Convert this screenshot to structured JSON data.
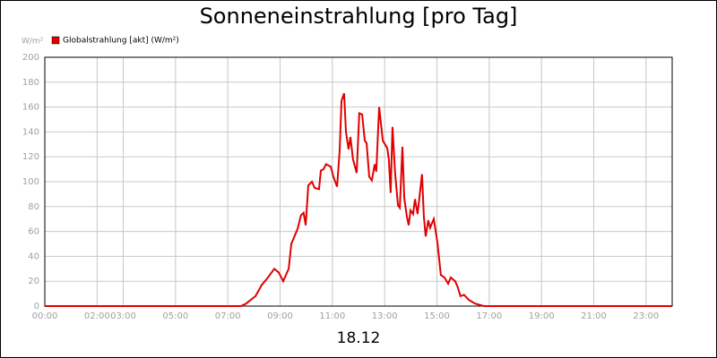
{
  "chart_data": {
    "type": "line",
    "title": "Sonneneinstrahlung [pro Tag]",
    "ylabel": "W/m²",
    "xlabel": "18.12",
    "x": [
      0,
      7.5,
      7.7,
      8.06,
      8.3,
      8.5,
      8.78,
      8.95,
      9.12,
      9.33,
      9.43,
      9.67,
      9.8,
      9.9,
      9.98,
      10.08,
      10.22,
      10.32,
      10.49,
      10.56,
      10.66,
      10.76,
      10.94,
      11.04,
      11.18,
      11.28,
      11.35,
      11.45,
      11.52,
      11.62,
      11.69,
      11.79,
      11.93,
      12.03,
      12.14,
      12.24,
      12.31,
      12.41,
      12.51,
      12.62,
      12.68,
      12.79,
      12.93,
      13.1,
      13.16,
      13.23,
      13.3,
      13.4,
      13.51,
      13.58,
      13.68,
      13.75,
      13.85,
      13.92,
      13.99,
      14.09,
      14.16,
      14.26,
      14.43,
      14.5,
      14.57,
      14.67,
      14.74,
      14.88,
      15.02,
      15.15,
      15.29,
      15.43,
      15.53,
      15.7,
      15.8,
      15.9,
      16.04,
      16.22,
      16.46,
      16.8,
      24
    ],
    "series": [
      {
        "name": "Globalstrahlung [akt] (W/m²)",
        "color": "#e00000",
        "values": [
          0,
          0,
          2,
          8,
          17,
          22,
          30,
          27,
          20,
          30,
          50,
          62,
          73,
          75,
          65,
          97,
          100,
          95,
          94,
          109,
          110,
          114,
          112,
          104,
          96,
          125,
          165,
          171,
          140,
          126,
          136,
          118,
          107,
          155,
          154,
          133,
          131,
          104,
          101,
          114,
          108,
          160,
          133,
          127,
          118,
          91,
          144,
          107,
          81,
          79,
          128,
          87,
          72,
          65,
          77,
          74,
          86,
          74,
          106,
          72,
          56,
          69,
          63,
          70,
          51,
          25,
          23,
          18,
          23,
          20,
          15,
          8,
          9,
          5,
          2,
          0,
          0
        ]
      }
    ],
    "xlim": [
      0,
      24
    ],
    "ylim": [
      0,
      200
    ],
    "xticks": [
      {
        "value": 0,
        "label": "00:00"
      },
      {
        "value": 2,
        "label": "02:00"
      },
      {
        "value": 3,
        "label": "03:00"
      },
      {
        "value": 5,
        "label": "05:00"
      },
      {
        "value": 7,
        "label": "07:00"
      },
      {
        "value": 9,
        "label": "09:00"
      },
      {
        "value": 11,
        "label": "11:00"
      },
      {
        "value": 13,
        "label": "13:00"
      },
      {
        "value": 15,
        "label": "15:00"
      },
      {
        "value": 17,
        "label": "17:00"
      },
      {
        "value": 19,
        "label": "19:00"
      },
      {
        "value": 21,
        "label": "21:00"
      },
      {
        "value": 23,
        "label": "23:00"
      }
    ],
    "yticks": [
      0,
      20,
      40,
      60,
      80,
      100,
      120,
      140,
      160,
      180,
      200
    ],
    "grid": true,
    "legend": "top-left"
  }
}
